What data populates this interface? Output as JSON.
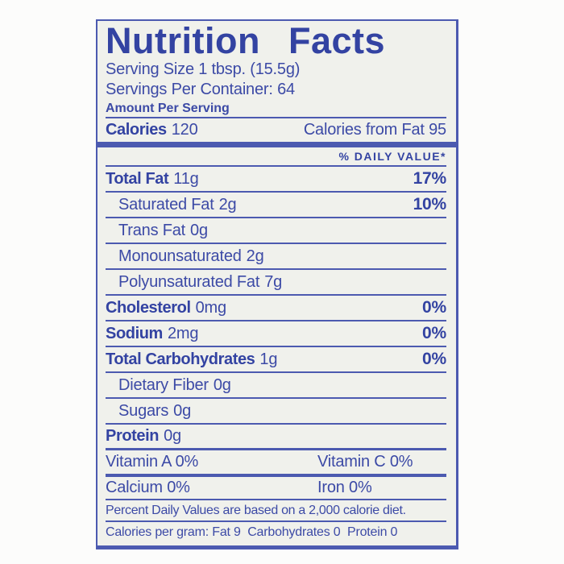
{
  "colors": {
    "ink_blue": "#3c4aa6",
    "rule_blue": "#4c5ab0",
    "label_background": "#f0f1ec",
    "page_background": "#fcfcfb"
  },
  "label": {
    "title": "Nutrition Facts",
    "serving_size": "Serving Size 1 tbsp. (15.5g)",
    "servings_per_container": "Servings Per Container: 64",
    "amount_per_serving": "Amount Per Serving",
    "calories_label": "Calories",
    "calories_value": "120",
    "calories_from_fat": "Calories from Fat 95",
    "daily_value_header": "% DAILY VALUE*"
  },
  "nutrients": [
    {
      "name": "Total Fat",
      "amount": "11g",
      "dv": "17%"
    },
    {
      "name": "Saturated Fat",
      "amount": "2g",
      "dv": "10%"
    },
    {
      "name": "Trans Fat",
      "amount": "0g",
      "dv": ""
    },
    {
      "name": "Monounsaturated",
      "amount": "2g",
      "dv": ""
    },
    {
      "name": "Polyunsaturated Fat",
      "amount": "7g",
      "dv": ""
    },
    {
      "name": "Cholesterol",
      "amount": "0mg",
      "dv": "0%"
    },
    {
      "name": "Sodium",
      "amount": "2mg",
      "dv": "0%"
    },
    {
      "name": "Total Carbohydrates",
      "amount": "1g",
      "dv": "0%"
    },
    {
      "name": "Dietary Fiber",
      "amount": "0g",
      "dv": ""
    },
    {
      "name": "Sugars",
      "amount": "0g",
      "dv": ""
    },
    {
      "name": "Protein",
      "amount": "0g",
      "dv": ""
    }
  ],
  "vitamins": [
    {
      "left": "Vitamin A 0%",
      "right": "Vitamin C 0%"
    },
    {
      "left": "Calcium 0%",
      "right": "Iron 0%"
    }
  ],
  "footnote": "Percent Daily Values are based on a 2,000 calorie diet.",
  "calories_per_gram": "Calories per gram: Fat 9  Carbohydrates 0  Protein 0"
}
